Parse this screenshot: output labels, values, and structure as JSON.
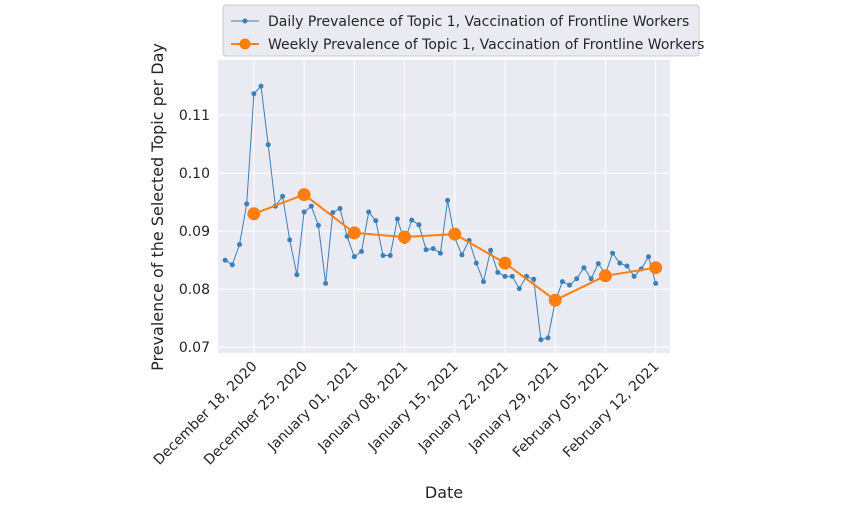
{
  "chart_data": {
    "type": "line",
    "title": "",
    "xlabel": "Date",
    "ylabel": "Prevalence of the Selected Topic per Day",
    "grid": true,
    "legend_position": "top",
    "ylim": [
      0.069,
      0.1195
    ],
    "xlim": [
      "2020-12-13",
      "2021-02-14"
    ],
    "x_ticks": [
      {
        "date": "2020-12-18",
        "label": "December 18, 2020"
      },
      {
        "date": "2020-12-25",
        "label": "December 25, 2020"
      },
      {
        "date": "2021-01-01",
        "label": "January 01, 2021"
      },
      {
        "date": "2021-01-08",
        "label": "January 08, 2021"
      },
      {
        "date": "2021-01-15",
        "label": "January 15, 2021"
      },
      {
        "date": "2021-01-22",
        "label": "January 22, 2021"
      },
      {
        "date": "2021-01-29",
        "label": "January 29, 2021"
      },
      {
        "date": "2021-02-05",
        "label": "February 05, 2021"
      },
      {
        "date": "2021-02-12",
        "label": "February 12, 2021"
      }
    ],
    "y_ticks": [
      {
        "value": 0.07,
        "label": "0.07"
      },
      {
        "value": 0.08,
        "label": "0.08"
      },
      {
        "value": 0.09,
        "label": "0.09"
      },
      {
        "value": 0.1,
        "label": "0.10"
      },
      {
        "value": 0.11,
        "label": "0.11"
      }
    ],
    "series": [
      {
        "name": "Daily Prevalence of Topic 1, Vaccination of Frontline Workers",
        "color": "#3a80b9",
        "x": [
          "2020-12-14",
          "2020-12-15",
          "2020-12-16",
          "2020-12-17",
          "2020-12-18",
          "2020-12-19",
          "2020-12-20",
          "2020-12-21",
          "2020-12-22",
          "2020-12-23",
          "2020-12-24",
          "2020-12-25",
          "2020-12-26",
          "2020-12-27",
          "2020-12-28",
          "2020-12-29",
          "2020-12-30",
          "2020-12-31",
          "2021-01-01",
          "2021-01-02",
          "2021-01-03",
          "2021-01-04",
          "2021-01-05",
          "2021-01-06",
          "2021-01-07",
          "2021-01-08",
          "2021-01-09",
          "2021-01-10",
          "2021-01-11",
          "2021-01-12",
          "2021-01-13",
          "2021-01-14",
          "2021-01-15",
          "2021-01-16",
          "2021-01-17",
          "2021-01-18",
          "2021-01-19",
          "2021-01-20",
          "2021-01-21",
          "2021-01-22",
          "2021-01-23",
          "2021-01-24",
          "2021-01-25",
          "2021-01-26",
          "2021-01-27",
          "2021-01-28",
          "2021-01-29",
          "2021-01-30",
          "2021-01-31",
          "2021-02-01",
          "2021-02-02",
          "2021-02-03",
          "2021-02-04",
          "2021-02-05",
          "2021-02-06",
          "2021-02-07",
          "2021-02-08",
          "2021-02-09",
          "2021-02-10",
          "2021-02-11",
          "2021-02-12"
        ],
        "values": [
          0.085,
          0.0842,
          0.0877,
          0.0947,
          0.1137,
          0.115,
          0.1049,
          0.0943,
          0.096,
          0.0885,
          0.0825,
          0.0933,
          0.0943,
          0.091,
          0.081,
          0.0932,
          0.0939,
          0.0891,
          0.0856,
          0.0865,
          0.0933,
          0.0918,
          0.0858,
          0.0858,
          0.0921,
          0.0882,
          0.0919,
          0.0911,
          0.0868,
          0.087,
          0.0862,
          0.0953,
          0.0888,
          0.0859,
          0.0884,
          0.0845,
          0.0813,
          0.0867,
          0.0829,
          0.0822,
          0.0822,
          0.0801,
          0.0822,
          0.0817,
          0.0713,
          0.0716,
          0.0779,
          0.0813,
          0.0807,
          0.0818,
          0.0837,
          0.0818,
          0.0844,
          0.0826,
          0.0862,
          0.0845,
          0.084,
          0.0822,
          0.0835,
          0.0856,
          0.081
        ]
      },
      {
        "name": "Weekly Prevalence of Topic 1, Vaccination of Frontline Workers",
        "color": "#ff7f0e",
        "x": [
          "2020-12-18",
          "2020-12-25",
          "2021-01-01",
          "2021-01-08",
          "2021-01-15",
          "2021-01-22",
          "2021-01-29",
          "2021-02-05",
          "2021-02-12"
        ],
        "values": [
          0.093,
          0.0963,
          0.0897,
          0.089,
          0.0895,
          0.0845,
          0.0781,
          0.0823,
          0.0837
        ]
      }
    ]
  }
}
